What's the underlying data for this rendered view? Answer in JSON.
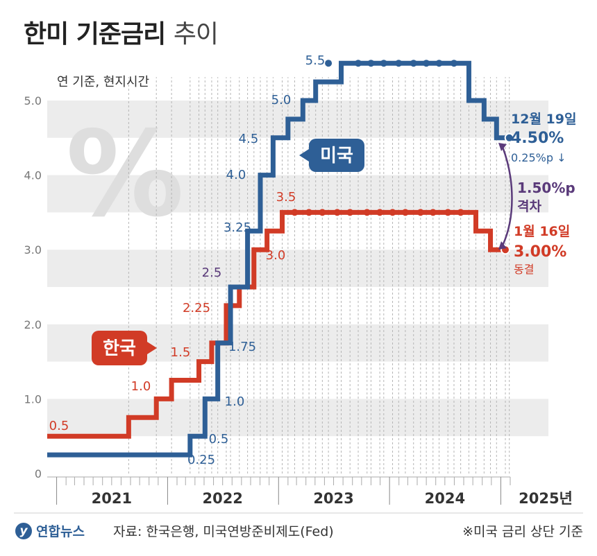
{
  "header": {
    "title_main": "한미 기준금리",
    "title_sub": "추이",
    "unit_note": "연 기준, 현지시간"
  },
  "footer": {
    "logo_text": "연합뉴스",
    "source": "자료: 한국은행, 미국연방준비제도(Fed)",
    "note": "※미국 금리 상단 기준"
  },
  "colors": {
    "us": "#2e5f96",
    "korea": "#d13b26",
    "gap": "#5a3a7a",
    "band": "#ececec",
    "text": "#333333"
  },
  "chart_data": {
    "type": "line",
    "step": true,
    "title": "한미 기준금리 추이",
    "ylabel": "연 기준, 현지시간",
    "ylim": [
      0,
      5.5
    ],
    "yticks": [
      "0",
      "1.0",
      "2.0",
      "3.0",
      "4.0",
      "5.0"
    ],
    "xlim": [
      "2020-12-01",
      "2025-02-01"
    ],
    "year_labels": [
      "2021",
      "2022",
      "2023",
      "2024",
      "2025년"
    ],
    "series": [
      {
        "name": "미국",
        "step_points": [
          [
            "2020-12-01",
            0.25
          ],
          [
            "2022-03-16",
            0.5
          ],
          [
            "2022-05-04",
            1.0
          ],
          [
            "2022-06-15",
            1.75
          ],
          [
            "2022-07-27",
            2.5
          ],
          [
            "2022-09-21",
            3.25
          ],
          [
            "2022-11-02",
            4.0
          ],
          [
            "2022-12-14",
            4.5
          ],
          [
            "2023-02-01",
            4.75
          ],
          [
            "2023-03-22",
            5.0
          ],
          [
            "2023-05-03",
            5.25
          ],
          [
            "2023-07-26",
            5.5
          ],
          [
            "2024-09-18",
            5.0
          ],
          [
            "2024-11-07",
            4.75
          ],
          [
            "2024-12-18",
            4.5
          ],
          [
            "2025-01-29",
            4.5
          ]
        ],
        "hold_dates": [
          "2023-06-14",
          "2023-09-20",
          "2023-11-01",
          "2023-12-13",
          "2024-01-31",
          "2024-03-20",
          "2024-05-01",
          "2024-06-12",
          "2024-07-31"
        ],
        "labels": [
          "0.25",
          "0.5",
          "1.0",
          "1.75",
          "2.5",
          "3.25",
          "4.0",
          "4.5",
          "5.0",
          "5.5"
        ]
      },
      {
        "name": "한국",
        "step_points": [
          [
            "2020-12-01",
            0.5
          ],
          [
            "2021-08-26",
            0.75
          ],
          [
            "2021-11-25",
            1.0
          ],
          [
            "2022-01-14",
            1.25
          ],
          [
            "2022-04-14",
            1.5
          ],
          [
            "2022-05-26",
            1.75
          ],
          [
            "2022-07-13",
            2.25
          ],
          [
            "2022-08-25",
            2.5
          ],
          [
            "2022-10-12",
            3.0
          ],
          [
            "2022-11-24",
            3.25
          ],
          [
            "2023-01-13",
            3.5
          ],
          [
            "2024-10-11",
            3.25
          ],
          [
            "2024-11-28",
            3.0
          ],
          [
            "2025-01-16",
            3.0
          ]
        ],
        "hold_dates": [
          "2023-02-23",
          "2023-04-11",
          "2023-05-25",
          "2023-07-13",
          "2023-08-24",
          "2023-10-19",
          "2023-11-30",
          "2024-01-11",
          "2024-02-22",
          "2024-04-12",
          "2024-05-23",
          "2024-07-11",
          "2024-08-22"
        ],
        "labels": [
          "0.5",
          "1.0",
          "1.5",
          "2.25",
          "3.0",
          "3.5"
        ]
      }
    ],
    "annotations": {
      "us_tag": "미국",
      "kr_tag": "한국",
      "us_date": "12월 19일",
      "us_rate": "4.50%",
      "us_change": "0.25%p ↓",
      "gap_value": "1.50%p",
      "gap_label": "격차",
      "kr_date": "1월 16일",
      "kr_rate": "3.00%",
      "kr_status": "동결"
    }
  }
}
